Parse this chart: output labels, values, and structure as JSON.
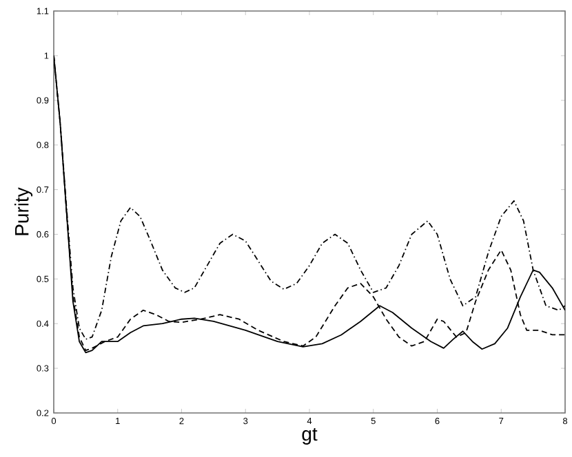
{
  "chart_data": {
    "type": "line",
    "xlabel": "gt",
    "ylabel": "Purity",
    "xlim": [
      0,
      8
    ],
    "ylim": [
      0.2,
      1.1
    ],
    "xticks": [
      0,
      1,
      2,
      3,
      4,
      5,
      6,
      7,
      8
    ],
    "yticks": [
      0.2,
      0.3,
      0.4,
      0.5,
      0.6,
      0.7,
      0.8,
      0.9,
      1,
      1.1
    ],
    "grid": false,
    "series": [
      {
        "color": "#000000",
        "line_style": "solid",
        "x": [
          0,
          0.1,
          0.2,
          0.3,
          0.4,
          0.5,
          0.6,
          0.75,
          1.0,
          1.2,
          1.4,
          1.7,
          2.0,
          2.2,
          2.5,
          3.0,
          3.5,
          3.9,
          4.2,
          4.5,
          4.8,
          5.1,
          5.3,
          5.6,
          5.9,
          6.1,
          6.25,
          6.4,
          6.55,
          6.7,
          6.9,
          7.1,
          7.3,
          7.5,
          7.6,
          7.8,
          8.0
        ],
        "values": [
          1.0,
          0.85,
          0.65,
          0.45,
          0.36,
          0.335,
          0.34,
          0.36,
          0.36,
          0.38,
          0.395,
          0.4,
          0.41,
          0.412,
          0.405,
          0.385,
          0.36,
          0.348,
          0.355,
          0.375,
          0.405,
          0.44,
          0.425,
          0.39,
          0.36,
          0.345,
          0.365,
          0.383,
          0.36,
          0.343,
          0.355,
          0.39,
          0.46,
          0.52,
          0.515,
          0.48,
          0.43
        ]
      },
      {
        "color": "#000000",
        "line_style": "dashed",
        "x": [
          0,
          0.1,
          0.2,
          0.3,
          0.4,
          0.5,
          0.6,
          0.8,
          1.0,
          1.2,
          1.4,
          1.6,
          1.8,
          2.0,
          2.3,
          2.6,
          2.9,
          3.2,
          3.6,
          3.9,
          4.1,
          4.4,
          4.6,
          4.8,
          5.0,
          5.2,
          5.4,
          5.6,
          5.8,
          6.0,
          6.1,
          6.3,
          6.45,
          6.6,
          6.8,
          7.0,
          7.15,
          7.3,
          7.4,
          7.6,
          7.8,
          8.0
        ],
        "values": [
          1.0,
          0.85,
          0.65,
          0.46,
          0.37,
          0.34,
          0.345,
          0.36,
          0.37,
          0.41,
          0.43,
          0.42,
          0.405,
          0.403,
          0.41,
          0.42,
          0.41,
          0.385,
          0.36,
          0.35,
          0.37,
          0.44,
          0.48,
          0.49,
          0.46,
          0.41,
          0.37,
          0.35,
          0.36,
          0.41,
          0.405,
          0.37,
          0.38,
          0.45,
          0.52,
          0.565,
          0.52,
          0.42,
          0.385,
          0.385,
          0.375,
          0.375
        ]
      },
      {
        "color": "#000000",
        "line_style": "dashdot",
        "x": [
          0,
          0.1,
          0.2,
          0.3,
          0.4,
          0.5,
          0.6,
          0.75,
          0.9,
          1.05,
          1.2,
          1.35,
          1.5,
          1.7,
          1.9,
          2.05,
          2.2,
          2.4,
          2.6,
          2.8,
          3.0,
          3.2,
          3.4,
          3.6,
          3.8,
          4.0,
          4.2,
          4.4,
          4.6,
          4.8,
          5.0,
          5.2,
          5.4,
          5.6,
          5.85,
          6.0,
          6.2,
          6.4,
          6.6,
          6.8,
          7.0,
          7.2,
          7.35,
          7.5,
          7.7,
          7.9,
          8.0
        ],
        "values": [
          1.0,
          0.85,
          0.66,
          0.48,
          0.39,
          0.365,
          0.37,
          0.43,
          0.55,
          0.63,
          0.66,
          0.64,
          0.59,
          0.52,
          0.48,
          0.47,
          0.48,
          0.53,
          0.58,
          0.6,
          0.585,
          0.54,
          0.495,
          0.477,
          0.49,
          0.53,
          0.58,
          0.6,
          0.58,
          0.52,
          0.47,
          0.48,
          0.53,
          0.6,
          0.63,
          0.6,
          0.5,
          0.44,
          0.46,
          0.56,
          0.64,
          0.675,
          0.63,
          0.52,
          0.44,
          0.43,
          0.44
        ]
      }
    ]
  }
}
